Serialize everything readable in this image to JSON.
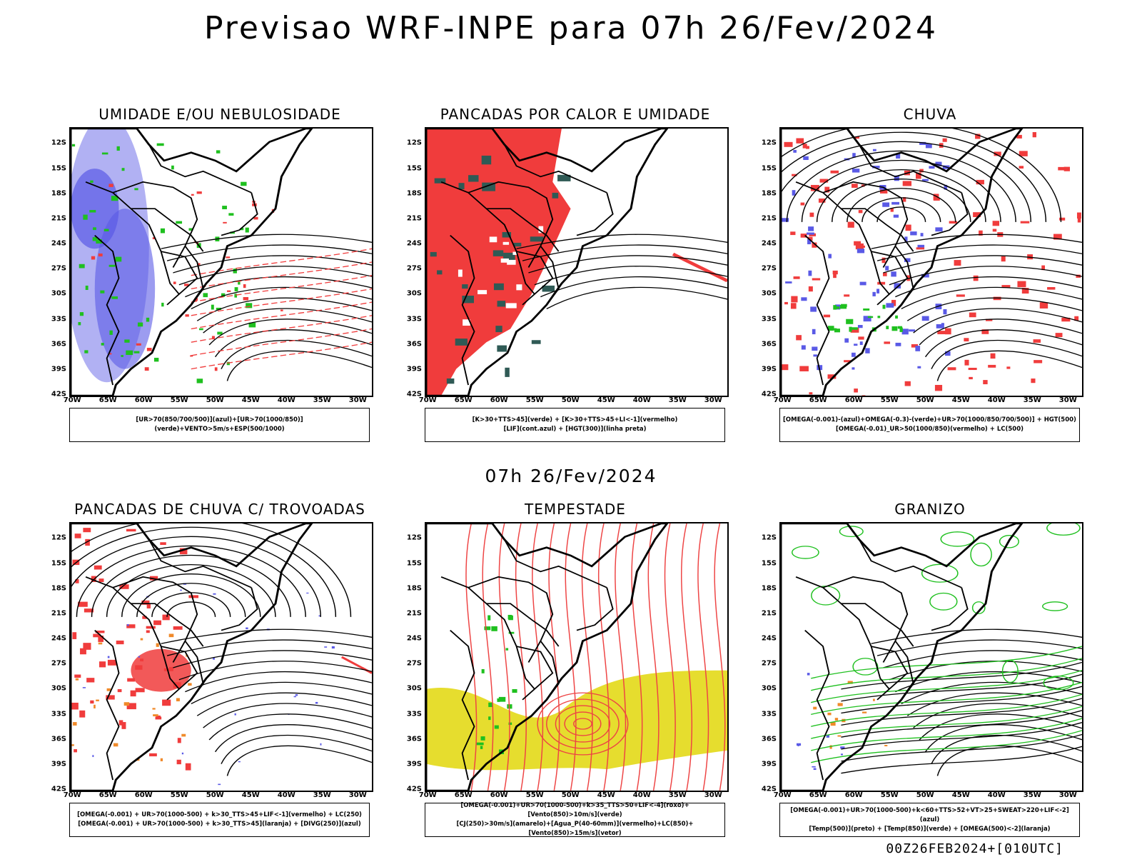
{
  "title": "Previsao WRF-INPE  para 07h 26/Fev/2024",
  "mid_time": "07h 26/Fev/2024",
  "footer": "00Z26FEB2024+[010UTC]",
  "axes": {
    "lat": [
      "12S",
      "15S",
      "18S",
      "21S",
      "24S",
      "27S",
      "30S",
      "33S",
      "36S",
      "39S",
      "42S"
    ],
    "lon": [
      "70W",
      "65W",
      "60W",
      "55W",
      "50W",
      "45W",
      "40W",
      "35W",
      "30W"
    ]
  },
  "colors": {
    "blue": "#5a5ae6",
    "lightblue": "#a9a9f2",
    "green": "#1fc01f",
    "red": "#f03c3c",
    "darkgreen": "#2f5a55",
    "yellow": "#e6dd2e",
    "orange": "#f08a2a"
  },
  "panels": [
    {
      "title": "UMIDADE E/OU NEBULOSIDADE",
      "legend": [
        "[UR>70(850/700/500)](azul)+[UR>70(1000/850)](verde)+VENTO>5m/s+ESP(500/1000)"
      ]
    },
    {
      "title": "PANCADAS POR CALOR E UMIDADE",
      "legend": [
        "[K>30+TTS>45](verde) + [K>30+TTS>45+LI<-1](vermelho)",
        "[LIF](cont.azul) + [HGT(300)](linha preta)"
      ]
    },
    {
      "title": "CHUVA",
      "legend": [
        "[OMEGA(-0.001)-(azul)+OMEGA(-0.3)-(verde)+UR>70(1000/850/700/500)] + HGT(500)",
        "[OMEGA(-0.01)_UR>50(1000/850)(vermelho) + LC(500)"
      ]
    },
    {
      "title": "PANCADAS DE CHUVA C/ TROVOADAS",
      "legend": [
        "[OMEGA(-0.001) + UR>70(1000-500) + k>30_TTS>45+LIF<-1](vermelho) + LC(250)",
        "[OMEGA(-0.001) + UR>70(1000-500) + k>30_TTS>45](laranja) + [DIVG(250)](azul)"
      ]
    },
    {
      "title": "TEMPESTADE",
      "legend": [
        "[OMEGA(-0.001)+UR>70(1000-500)+k>35_TTS>50+LIF<-4](roxo)+[Vento(850)>10m/s](verde)",
        "[CJ(250)>30m/s](amarelo)+[Agua_P(40-60mm)](vermelho)+LC(850)+[Vento(850)>15m/s](vetor)"
      ]
    },
    {
      "title": "GRANIZO",
      "legend": [
        "[OMEGA(-0.001)+UR>70(1000-500)+k<60+TTS>52+VT>25+SWEAT>220+LIF<-2](azul)",
        "[Temp(500)](preto) + [Temp(850)](verde) + [OMEGA(500)<-2](laranja)"
      ]
    }
  ]
}
